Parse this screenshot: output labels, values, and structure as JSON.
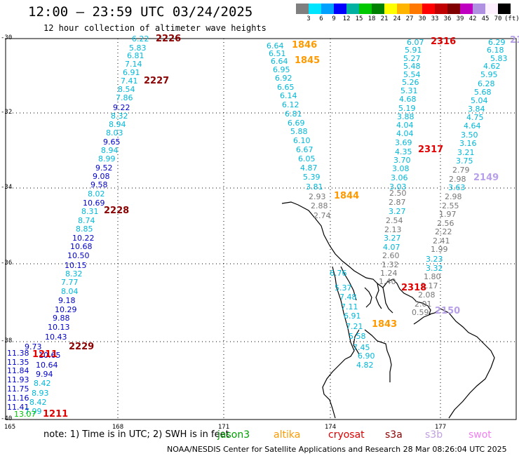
{
  "title": "12:00 — 23:59 UTC 03/24/2025",
  "subtitle": "12 hour collection of altimeter wave heights",
  "colorbar": {
    "labels": [
      "3",
      "6",
      "9",
      "12",
      "15",
      "18",
      "21",
      "24",
      "27",
      "30",
      "33",
      "36",
      "39",
      "42",
      "45",
      "70",
      "(ft)"
    ],
    "colors": [
      "#7f7f7f",
      "#00e5ff",
      "#00a0ff",
      "#0000ff",
      "#00b0a0",
      "#00c800",
      "#008000",
      "#ffff00",
      "#ffb400",
      "#ff7800",
      "#ff0000",
      "#c00000",
      "#800000",
      "#c000c0",
      "#b090e0",
      "#fff0ff",
      "#000000"
    ]
  },
  "lat_labels": [
    "-30",
    "-32",
    "-34",
    "-36",
    "-38",
    "-40"
  ],
  "lon_labels": [
    "165",
    "168",
    "171",
    "174",
    "177"
  ],
  "passes": [
    {
      "label": "2226",
      "color": "#8b0000"
    },
    {
      "label": "2227",
      "color": "#8b0000"
    },
    {
      "label": "2228",
      "color": "#8b0000"
    },
    {
      "label": "2229",
      "color": "#8b0000"
    },
    {
      "label": "1211",
      "color": "#e00000"
    },
    {
      "label": "1211",
      "color": "#e00000"
    },
    {
      "label": "1846",
      "color": "#ff9900"
    },
    {
      "label": "1845",
      "color": "#ff9900"
    },
    {
      "label": "1844",
      "color": "#ff9900"
    },
    {
      "label": "1843",
      "color": "#ff9900"
    },
    {
      "label": "2316",
      "color": "#e00000"
    },
    {
      "label": "2317",
      "color": "#e00000"
    },
    {
      "label": "2318",
      "color": "#e00000"
    },
    {
      "label": "2149",
      "color": "#b8a0e8"
    },
    {
      "label": "2150",
      "color": "#b8a0e8"
    },
    {
      "label": "21",
      "color": "#b8a0e8"
    }
  ],
  "wave_values": [
    {
      "v": "6.22",
      "c": "#00b8d8"
    },
    {
      "v": "5.83",
      "c": "#00b8d8"
    },
    {
      "v": "6.81",
      "c": "#00b8d8"
    },
    {
      "v": "7.14",
      "c": "#00b8d8"
    },
    {
      "v": "6.91",
      "c": "#00b8d8"
    },
    {
      "v": "7.41",
      "c": "#00b8d8"
    },
    {
      "v": "8.54",
      "c": "#00b8d8"
    },
    {
      "v": "7.86",
      "c": "#00b8d8"
    },
    {
      "v": "9.22",
      "c": "#0000cc"
    },
    {
      "v": "8.32",
      "c": "#00b8d8"
    },
    {
      "v": "8.94",
      "c": "#00b8d8"
    },
    {
      "v": "8.03",
      "c": "#00b8d8"
    },
    {
      "v": "9.65",
      "c": "#0000cc"
    },
    {
      "v": "8.94",
      "c": "#00b8d8"
    },
    {
      "v": "8.99",
      "c": "#00b8d8"
    },
    {
      "v": "9.52",
      "c": "#0000cc"
    },
    {
      "v": "9.08",
      "c": "#0000cc"
    },
    {
      "v": "9.58",
      "c": "#0000cc"
    },
    {
      "v": "8.02",
      "c": "#00b8d8"
    },
    {
      "v": "10.69",
      "c": "#0000cc"
    },
    {
      "v": "8.31",
      "c": "#00b8d8"
    },
    {
      "v": "8.74",
      "c": "#00b8d8"
    },
    {
      "v": "8.85",
      "c": "#00b8d8"
    },
    {
      "v": "10.22",
      "c": "#0000cc"
    },
    {
      "v": "10.68",
      "c": "#0000cc"
    },
    {
      "v": "10.50",
      "c": "#0000cc"
    },
    {
      "v": "10.15",
      "c": "#0000cc"
    },
    {
      "v": "8.32",
      "c": "#00b8d8"
    },
    {
      "v": "7.77",
      "c": "#00b8d8"
    },
    {
      "v": "8.04",
      "c": "#00b8d8"
    },
    {
      "v": "9.18",
      "c": "#0000cc"
    },
    {
      "v": "10.29",
      "c": "#0000cc"
    },
    {
      "v": "9.88",
      "c": "#0000cc"
    },
    {
      "v": "10.13",
      "c": "#0000cc"
    },
    {
      "v": "10.43",
      "c": "#0000cc"
    },
    {
      "v": "9.73",
      "c": "#0000cc"
    },
    {
      "v": "10.65",
      "c": "#0000cc"
    },
    {
      "v": "10.64",
      "c": "#0000cc"
    },
    {
      "v": "9.94",
      "c": "#0000cc"
    },
    {
      "v": "8.42",
      "c": "#00b8d8"
    },
    {
      "v": "8.93",
      "c": "#00b8d8"
    },
    {
      "v": "8.42",
      "c": "#00b8d8"
    },
    {
      "v": "7.99",
      "c": "#00b8d8"
    },
    {
      "v": "13.07",
      "c": "#00c800"
    },
    {
      "v": "11.38",
      "c": "#0000cc"
    },
    {
      "v": "11.35",
      "c": "#0000cc"
    },
    {
      "v": "11.84",
      "c": "#0000cc"
    },
    {
      "v": "11.93",
      "c": "#0000cc"
    },
    {
      "v": "11.75",
      "c": "#0000cc"
    },
    {
      "v": "11.16",
      "c": "#0000cc"
    },
    {
      "v": "11.41",
      "c": "#0000cc"
    },
    {
      "v": "6.64",
      "c": "#00b8d8"
    },
    {
      "v": "6.51",
      "c": "#00b8d8"
    },
    {
      "v": "6.64",
      "c": "#00b8d8"
    },
    {
      "v": "6.95",
      "c": "#00b8d8"
    },
    {
      "v": "6.92",
      "c": "#00b8d8"
    },
    {
      "v": "6.65",
      "c": "#00b8d8"
    },
    {
      "v": "6.14",
      "c": "#00b8d8"
    },
    {
      "v": "6.12",
      "c": "#00b8d8"
    },
    {
      "v": "6.81",
      "c": "#00b8d8"
    },
    {
      "v": "6.69",
      "c": "#00b8d8"
    },
    {
      "v": "5.88",
      "c": "#00b8d8"
    },
    {
      "v": "6.10",
      "c": "#00b8d8"
    },
    {
      "v": "6.67",
      "c": "#00b8d8"
    },
    {
      "v": "6.05",
      "c": "#00b8d8"
    },
    {
      "v": "4.87",
      "c": "#00b8d8"
    },
    {
      "v": "5.39",
      "c": "#00b8d8"
    },
    {
      "v": "3.81",
      "c": "#00b8d8"
    },
    {
      "v": "2.93",
      "c": "#777777"
    },
    {
      "v": "2.88",
      "c": "#777777"
    },
    {
      "v": "2.74",
      "c": "#777777"
    },
    {
      "v": "6.07",
      "c": "#00b8d8"
    },
    {
      "v": "5.91",
      "c": "#00b8d8"
    },
    {
      "v": "5.27",
      "c": "#00b8d8"
    },
    {
      "v": "5.48",
      "c": "#00b8d8"
    },
    {
      "v": "5.54",
      "c": "#00b8d8"
    },
    {
      "v": "5.26",
      "c": "#00b8d8"
    },
    {
      "v": "5.31",
      "c": "#00b8d8"
    },
    {
      "v": "4.68",
      "c": "#00b8d8"
    },
    {
      "v": "5.19",
      "c": "#00b8d8"
    },
    {
      "v": "3.88",
      "c": "#00b8d8"
    },
    {
      "v": "4.04",
      "c": "#00b8d8"
    },
    {
      "v": "4.04",
      "c": "#00b8d8"
    },
    {
      "v": "3.69",
      "c": "#00b8d8"
    },
    {
      "v": "4.35",
      "c": "#00b8d8"
    },
    {
      "v": "3.70",
      "c": "#00b8d8"
    },
    {
      "v": "3.08",
      "c": "#00b8d8"
    },
    {
      "v": "3.06",
      "c": "#00b8d8"
    },
    {
      "v": "3.03",
      "c": "#00b8d8"
    },
    {
      "v": "2.50",
      "c": "#777777"
    },
    {
      "v": "2.87",
      "c": "#777777"
    },
    {
      "v": "3.27",
      "c": "#00b8d8"
    },
    {
      "v": "2.54",
      "c": "#777777"
    },
    {
      "v": "2.13",
      "c": "#777777"
    },
    {
      "v": "3.27",
      "c": "#00b8d8"
    },
    {
      "v": "4.07",
      "c": "#00b8d8"
    },
    {
      "v": "2.60",
      "c": "#777777"
    },
    {
      "v": "1.32",
      "c": "#777777"
    },
    {
      "v": "1.24",
      "c": "#777777"
    },
    {
      "v": "1.40",
      "c": "#777777"
    },
    {
      "v": "6.29",
      "c": "#00b8d8"
    },
    {
      "v": "6.18",
      "c": "#00b8d8"
    },
    {
      "v": "5.83",
      "c": "#00b8d8"
    },
    {
      "v": "4.62",
      "c": "#00b8d8"
    },
    {
      "v": "5.95",
      "c": "#00b8d8"
    },
    {
      "v": "6.28",
      "c": "#00b8d8"
    },
    {
      "v": "5.68",
      "c": "#00b8d8"
    },
    {
      "v": "5.04",
      "c": "#00b8d8"
    },
    {
      "v": "3.84",
      "c": "#00b8d8"
    },
    {
      "v": "4.75",
      "c": "#00b8d8"
    },
    {
      "v": "4.64",
      "c": "#00b8d8"
    },
    {
      "v": "3.50",
      "c": "#00b8d8"
    },
    {
      "v": "3.16",
      "c": "#00b8d8"
    },
    {
      "v": "3.21",
      "c": "#00b8d8"
    },
    {
      "v": "3.75",
      "c": "#00b8d8"
    },
    {
      "v": "2.79",
      "c": "#777777"
    },
    {
      "v": "2.98",
      "c": "#777777"
    },
    {
      "v": "3.63",
      "c": "#00b8d8"
    },
    {
      "v": "2.98",
      "c": "#777777"
    },
    {
      "v": "2.55",
      "c": "#777777"
    },
    {
      "v": "1.97",
      "c": "#777777"
    },
    {
      "v": "2.56",
      "c": "#777777"
    },
    {
      "v": "2.22",
      "c": "#777777"
    },
    {
      "v": "2.41",
      "c": "#777777"
    },
    {
      "v": "1.99",
      "c": "#777777"
    },
    {
      "v": "3.23",
      "c": "#00b8d8"
    },
    {
      "v": "3.32",
      "c": "#00b8d8"
    },
    {
      "v": "1.80",
      "c": "#777777"
    },
    {
      "v": "2.17",
      "c": "#777777"
    },
    {
      "v": "2.08",
      "c": "#777777"
    },
    {
      "v": "2.01",
      "c": "#777777"
    },
    {
      "v": "0.59",
      "c": "#777777"
    },
    {
      "v": "6.76",
      "c": "#00b8d8"
    },
    {
      "v": "5.37",
      "c": "#00b8d8"
    },
    {
      "v": "7.48",
      "c": "#00b8d8"
    },
    {
      "v": "7.11",
      "c": "#00b8d8"
    },
    {
      "v": "6.91",
      "c": "#00b8d8"
    },
    {
      "v": "7.21",
      "c": "#00b8d8"
    },
    {
      "v": "5.58",
      "c": "#00b8d8"
    },
    {
      "v": "7.45",
      "c": "#00b8d8"
    },
    {
      "v": "6.90",
      "c": "#00b8d8"
    },
    {
      "v": "4.82",
      "c": "#00b8d8"
    }
  ],
  "note": "note: 1) Time is in UTC; 2) SWH is in feet",
  "satellites": [
    {
      "name": "jason3",
      "color": "#00a000"
    },
    {
      "name": "altika",
      "color": "#ff9900"
    },
    {
      "name": "cryosat",
      "color": "#e00000"
    },
    {
      "name": "s3a",
      "color": "#8b0000"
    },
    {
      "name": "s3b",
      "color": "#c0a0e0"
    },
    {
      "name": "swot",
      "color": "#f080f0"
    }
  ],
  "credit": "NOAA/NESDIS Center for Satellite Applications and Research   28 Mar 08:26:04 UTC 2025"
}
